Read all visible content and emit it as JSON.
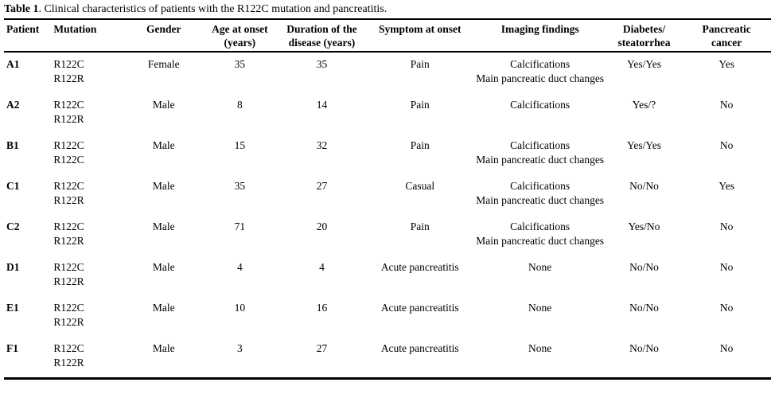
{
  "colors": {
    "text": "#000000",
    "background": "#ffffff",
    "rule": "#000000"
  },
  "caption": {
    "label": "Table 1",
    "text": ". Clinical characteristics of patients with the R122C mutation and pancreatitis."
  },
  "table": {
    "columns": [
      {
        "key": "patient",
        "lines": [
          "Patient"
        ],
        "align": "left",
        "width": 56
      },
      {
        "key": "mutation",
        "lines": [
          "Mutation"
        ],
        "align": "left",
        "width": 96
      },
      {
        "key": "gender",
        "lines": [
          "Gender"
        ],
        "align": "center",
        "width": 95
      },
      {
        "key": "age_at_onset",
        "lines": [
          "Age at onset",
          "(years)"
        ],
        "align": "center",
        "width": 95
      },
      {
        "key": "duration",
        "lines": [
          "Duration of the",
          "disease (years)"
        ],
        "align": "center",
        "width": 110
      },
      {
        "key": "symptom",
        "lines": [
          "Symptom at onset"
        ],
        "align": "center",
        "width": 135
      },
      {
        "key": "imaging",
        "lines": [
          "Imaging findings"
        ],
        "align": "center",
        "width": 165
      },
      {
        "key": "diabetes",
        "lines": [
          "Diabetes/",
          "steatorrhea"
        ],
        "align": "center",
        "width": 95
      },
      {
        "key": "cancer",
        "lines": [
          "Pancreatic",
          "cancer"
        ],
        "align": "center",
        "width": 111
      }
    ],
    "rows": [
      {
        "patient": "A1",
        "mutation": [
          "R122C",
          "R122R"
        ],
        "gender": "Female",
        "age_at_onset": "35",
        "duration": "35",
        "symptom": "Pain",
        "imaging": [
          "Calcifications",
          "Main pancreatic duct changes"
        ],
        "diabetes": "Yes/Yes",
        "cancer": "Yes"
      },
      {
        "patient": "A2",
        "mutation": [
          "R122C",
          "R122R"
        ],
        "gender": "Male",
        "age_at_onset": "8",
        "duration": "14",
        "symptom": "Pain",
        "imaging": [
          "Calcifications"
        ],
        "diabetes": "Yes/?",
        "cancer": "No"
      },
      {
        "patient": "B1",
        "mutation": [
          "R122C",
          "R122C"
        ],
        "gender": "Male",
        "age_at_onset": "15",
        "duration": "32",
        "symptom": "Pain",
        "imaging": [
          "Calcifications",
          "Main pancreatic duct changes"
        ],
        "diabetes": "Yes/Yes",
        "cancer": "No"
      },
      {
        "patient": "C1",
        "mutation": [
          "R122C",
          "R122R"
        ],
        "gender": "Male",
        "age_at_onset": "35",
        "duration": "27",
        "symptom": "Casual",
        "imaging": [
          "Calcifications",
          "Main pancreatic duct changes"
        ],
        "diabetes": "No/No",
        "cancer": "Yes"
      },
      {
        "patient": "C2",
        "mutation": [
          "R122C",
          "R122R"
        ],
        "gender": "Male",
        "age_at_onset": "71",
        "duration": "20",
        "symptom": "Pain",
        "imaging": [
          "Calcifications",
          "Main pancreatic duct changes"
        ],
        "diabetes": "Yes/No",
        "cancer": "No"
      },
      {
        "patient": "D1",
        "mutation": [
          "R122C",
          "R122R"
        ],
        "gender": "Male",
        "age_at_onset": "4",
        "duration": "4",
        "symptom": "Acute pancreatitis",
        "imaging": [
          "None"
        ],
        "diabetes": "No/No",
        "cancer": "No"
      },
      {
        "patient": "E1",
        "mutation": [
          "R122C",
          "R122R"
        ],
        "gender": "Male",
        "age_at_onset": "10",
        "duration": "16",
        "symptom": "Acute pancreatitis",
        "imaging": [
          "None"
        ],
        "diabetes": "No/No",
        "cancer": "No"
      },
      {
        "patient": "F1",
        "mutation": [
          "R122C",
          "R122R"
        ],
        "gender": "Male",
        "age_at_onset": "3",
        "duration": "27",
        "symptom": "Acute pancreatitis",
        "imaging": [
          "None"
        ],
        "diabetes": "No/No",
        "cancer": "No"
      }
    ]
  }
}
